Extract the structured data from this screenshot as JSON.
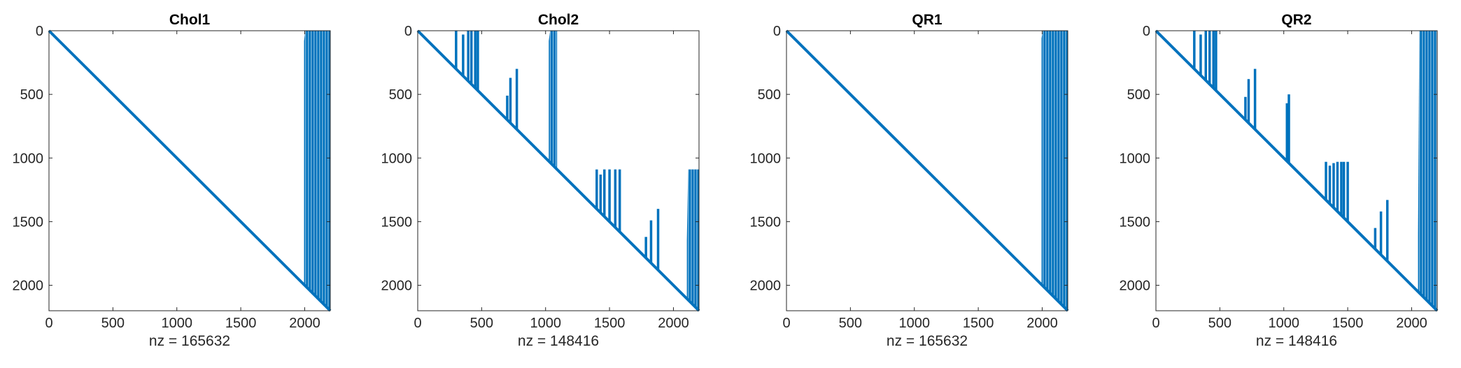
{
  "figure": {
    "background": "#ffffff",
    "series_color": "#0072bd",
    "axis_color": "#262626"
  },
  "chart_data": [
    {
      "type": "spy",
      "title": "Chol1",
      "xlabel": "nz = 165632",
      "nz": 165632,
      "xlim": [
        0,
        2200
      ],
      "ylim": [
        0,
        2200
      ],
      "y_reversed": true,
      "xticks": [
        0,
        500,
        1000,
        1500,
        2000
      ],
      "yticks": [
        0,
        500,
        1000,
        1500,
        2000
      ],
      "diagonal": true,
      "spikes": [],
      "dense_blocks": [
        {
          "x": [
            1995,
            2200
          ],
          "y_top": 0,
          "y_top_left": 80
        }
      ]
    },
    {
      "type": "spy",
      "title": "Chol2",
      "xlabel": "nz = 148416",
      "nz": 148416,
      "xlim": [
        0,
        2200
      ],
      "ylim": [
        0,
        2200
      ],
      "y_reversed": true,
      "xticks": [
        0,
        500,
        1000,
        1500,
        2000
      ],
      "yticks": [
        0,
        500,
        1000,
        1500,
        2000
      ],
      "diagonal": true,
      "spikes": [
        {
          "x": 300,
          "y_top": 0
        },
        {
          "x": 355,
          "y_top": 30
        },
        {
          "x": 395,
          "y_top": 0
        },
        {
          "x": 420,
          "y_top": 0
        },
        {
          "x": 450,
          "y_top": 0
        },
        {
          "x": 470,
          "y_top": 0
        },
        {
          "x": 700,
          "y_top": 510
        },
        {
          "x": 725,
          "y_top": 370
        },
        {
          "x": 775,
          "y_top": 300
        },
        {
          "x": 1400,
          "y_top": 1090
        },
        {
          "x": 1430,
          "y_top": 1130
        },
        {
          "x": 1460,
          "y_top": 1090
        },
        {
          "x": 1500,
          "y_top": 1090
        },
        {
          "x": 1545,
          "y_top": 1090
        },
        {
          "x": 1580,
          "y_top": 1090
        },
        {
          "x": 1785,
          "y_top": 1620
        },
        {
          "x": 1825,
          "y_top": 1490
        },
        {
          "x": 1880,
          "y_top": 1400
        }
      ],
      "dense_blocks": [
        {
          "x": [
            1025,
            1090
          ],
          "y_top": 0,
          "y_top_left": 80
        },
        {
          "x": [
            2105,
            2200
          ],
          "y_top": 1090,
          "y_top_left": 1650
        }
      ]
    },
    {
      "type": "spy",
      "title": "QR1",
      "xlabel": "nz = 165632",
      "nz": 165632,
      "xlim": [
        0,
        2200
      ],
      "ylim": [
        0,
        2200
      ],
      "y_reversed": true,
      "xticks": [
        0,
        500,
        1000,
        1500,
        2000
      ],
      "yticks": [
        0,
        500,
        1000,
        1500,
        2000
      ],
      "diagonal": true,
      "spikes": [],
      "dense_blocks": [
        {
          "x": [
            1995,
            2200
          ],
          "y_top": 0,
          "y_top_left": 60
        }
      ]
    },
    {
      "type": "spy",
      "title": "QR2",
      "xlabel": "nz = 148416",
      "nz": 148416,
      "xlim": [
        0,
        2200
      ],
      "ylim": [
        0,
        2200
      ],
      "y_reversed": true,
      "xticks": [
        0,
        500,
        1000,
        1500,
        2000
      ],
      "yticks": [
        0,
        500,
        1000,
        1500,
        2000
      ],
      "diagonal": true,
      "spikes": [
        {
          "x": 300,
          "y_top": 0
        },
        {
          "x": 350,
          "y_top": 30
        },
        {
          "x": 390,
          "y_top": 0
        },
        {
          "x": 420,
          "y_top": 0
        },
        {
          "x": 450,
          "y_top": 0
        },
        {
          "x": 470,
          "y_top": 0
        },
        {
          "x": 700,
          "y_top": 520
        },
        {
          "x": 725,
          "y_top": 380
        },
        {
          "x": 775,
          "y_top": 300
        },
        {
          "x": 1025,
          "y_top": 570
        },
        {
          "x": 1040,
          "y_top": 500
        },
        {
          "x": 1330,
          "y_top": 1030
        },
        {
          "x": 1360,
          "y_top": 1060
        },
        {
          "x": 1390,
          "y_top": 1040
        },
        {
          "x": 1420,
          "y_top": 1030
        },
        {
          "x": 1450,
          "y_top": 1030
        },
        {
          "x": 1470,
          "y_top": 1030
        },
        {
          "x": 1500,
          "y_top": 1030
        },
        {
          "x": 1715,
          "y_top": 1550
        },
        {
          "x": 1760,
          "y_top": 1420
        },
        {
          "x": 1810,
          "y_top": 1330
        }
      ],
      "dense_blocks": [
        {
          "x": [
            2050,
            2200
          ],
          "y_top": 0,
          "y_top_left": 1600
        }
      ]
    }
  ]
}
